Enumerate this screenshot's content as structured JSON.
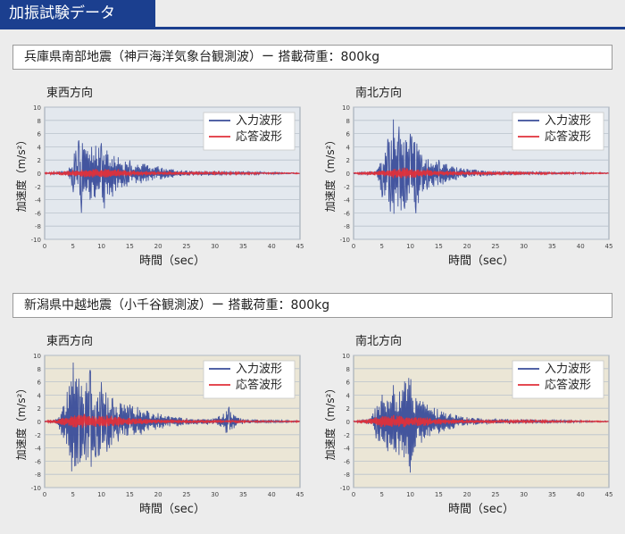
{
  "header": {
    "title": "加振試験データ"
  },
  "sections": [
    {
      "condition": "兵庫県南部地震（神戸海洋気象台観測波）ー 搭載荷重：800kg"
    },
    {
      "condition": "新潟県中越地震（小千谷観測波）ー 搭載荷重：800kg"
    }
  ],
  "colors": {
    "input": "#3a4d9a",
    "response": "#e0303a",
    "header_bg": "#1b3f8f",
    "plot_bg_1": "#e3e8ee",
    "plot_bg_2": "#ebe6d6"
  },
  "chart_data": [
    {
      "type": "line",
      "title": "東西方向",
      "xlabel": "時間（sec）",
      "ylabel": "加速度（m/s²）",
      "xlim": [
        0,
        45
      ],
      "ylim": [
        -10,
        10
      ],
      "grid": true,
      "legend_position": "top-right",
      "xticks": [
        "0",
        "5",
        "10",
        "15",
        "20",
        "25",
        "30",
        "35",
        "40",
        "45"
      ],
      "yticks": [
        "10",
        "8",
        "6",
        "4",
        "2",
        "0",
        "-2",
        "-4",
        "-6",
        "-8",
        "-10"
      ],
      "series": [
        {
          "name": "入力波形",
          "x": [
            0,
            4,
            5,
            5.5,
            6,
            6.5,
            7,
            8,
            9,
            10,
            10.5,
            11,
            12,
            13,
            14,
            15,
            17,
            20,
            25,
            30,
            35,
            40,
            45
          ],
          "y": [
            0,
            0.3,
            -2.8,
            3.4,
            5.0,
            -6.0,
            3.6,
            -4.0,
            4.2,
            4.6,
            -5.3,
            3.5,
            -3.5,
            2.5,
            -2.0,
            2.0,
            -1.5,
            1.0,
            0.4,
            0.3,
            0.2,
            0.1,
            0
          ]
        },
        {
          "name": "応答波形",
          "x": [
            0,
            5,
            7,
            9,
            11,
            13,
            15,
            20,
            30,
            45
          ],
          "y": [
            0,
            0.4,
            -0.6,
            0.7,
            -0.6,
            0.5,
            -0.4,
            0.2,
            0.1,
            0
          ]
        }
      ]
    },
    {
      "type": "line",
      "title": "南北方向",
      "xlabel": "時間（sec）",
      "ylabel": "加速度（m/s²）",
      "xlim": [
        0,
        45
      ],
      "ylim": [
        -10,
        10
      ],
      "grid": true,
      "legend_position": "top-right",
      "xticks": [
        "0",
        "5",
        "10",
        "15",
        "20",
        "25",
        "30",
        "35",
        "40",
        "45"
      ],
      "yticks": [
        "10",
        "8",
        "6",
        "4",
        "2",
        "0",
        "-2",
        "-4",
        "-6",
        "-8",
        "-10"
      ],
      "series": [
        {
          "name": "入力波形",
          "x": [
            0,
            4,
            5,
            6,
            6.5,
            7,
            7.5,
            8,
            9,
            10,
            11,
            12,
            13,
            15,
            18,
            20,
            25,
            30,
            35,
            40,
            45
          ],
          "y": [
            0,
            0.3,
            -3.6,
            5.2,
            -5.8,
            8.1,
            -3.0,
            7.0,
            -5.4,
            6.0,
            -6.0,
            2.8,
            -2.5,
            2.0,
            -1.0,
            0.6,
            0.3,
            0.2,
            0.1,
            0.1,
            0
          ]
        },
        {
          "name": "応答波形",
          "x": [
            0,
            5,
            7,
            9,
            11,
            13,
            15,
            20,
            30,
            45
          ],
          "y": [
            0,
            0.4,
            -0.7,
            0.8,
            -0.6,
            0.5,
            -0.4,
            0.2,
            0.1,
            0
          ]
        }
      ]
    },
    {
      "type": "line",
      "title": "東西方向",
      "xlabel": "時間（sec）",
      "ylabel": "加速度（m/s²）",
      "xlim": [
        0,
        45
      ],
      "ylim": [
        -10,
        10
      ],
      "grid": true,
      "legend_position": "top-right",
      "xticks": [
        "0",
        "5",
        "10",
        "15",
        "20",
        "25",
        "30",
        "35",
        "40",
        "45"
      ],
      "yticks": [
        "10",
        "8",
        "6",
        "4",
        "2",
        "0",
        "-2",
        "-4",
        "-6",
        "-8",
        "-10"
      ],
      "series": [
        {
          "name": "入力波形",
          "x": [
            0,
            2,
            3,
            4,
            5,
            5.5,
            6,
            7,
            8,
            9,
            10,
            11,
            12,
            13,
            15,
            17,
            20,
            25,
            30,
            32.5,
            33,
            35,
            40,
            45
          ],
          "y": [
            0,
            0.3,
            -2.0,
            4.5,
            8.9,
            -6.7,
            6.5,
            -5.0,
            7.8,
            -5.4,
            6.0,
            -4.5,
            3.5,
            -3.0,
            2.5,
            -2.0,
            1.2,
            0.5,
            0.4,
            2.2,
            -1.2,
            0.3,
            0.2,
            0
          ]
        },
        {
          "name": "応答波形",
          "x": [
            0,
            3,
            5,
            7,
            9,
            11,
            13,
            15,
            20,
            30,
            45
          ],
          "y": [
            0,
            0.5,
            -0.9,
            1.1,
            -0.8,
            0.9,
            -0.7,
            0.5,
            0.3,
            0.1,
            0
          ]
        }
      ]
    },
    {
      "type": "line",
      "title": "南北方向",
      "xlabel": "時間（sec）",
      "ylabel": "加速度（m/s²）",
      "xlim": [
        0,
        45
      ],
      "ylim": [
        -10,
        10
      ],
      "grid": true,
      "legend_position": "top-right",
      "xticks": [
        "0",
        "5",
        "10",
        "15",
        "20",
        "25",
        "30",
        "35",
        "40",
        "45"
      ],
      "yticks": [
        "10",
        "8",
        "6",
        "4",
        "2",
        "0",
        "-2",
        "-4",
        "-6",
        "-8",
        "-10"
      ],
      "series": [
        {
          "name": "入力波形",
          "x": [
            0,
            3,
            4,
            5,
            6,
            7,
            8,
            9,
            10,
            11,
            12,
            13,
            15,
            18,
            20,
            25,
            30,
            35,
            40,
            45
          ],
          "y": [
            0,
            0.5,
            -2.5,
            4.0,
            -4.5,
            5.5,
            -5.0,
            6.0,
            -7.7,
            3.6,
            -3.2,
            2.5,
            -1.8,
            1.0,
            0.6,
            0.4,
            0.3,
            0.2,
            0.1,
            0
          ]
        },
        {
          "name": "応答波形",
          "x": [
            0,
            3,
            5,
            7,
            9,
            11,
            13,
            15,
            20,
            30,
            45
          ],
          "y": [
            0,
            0.4,
            -0.8,
            0.9,
            -0.8,
            0.7,
            -0.6,
            0.4,
            0.2,
            0.1,
            0
          ]
        }
      ]
    }
  ]
}
